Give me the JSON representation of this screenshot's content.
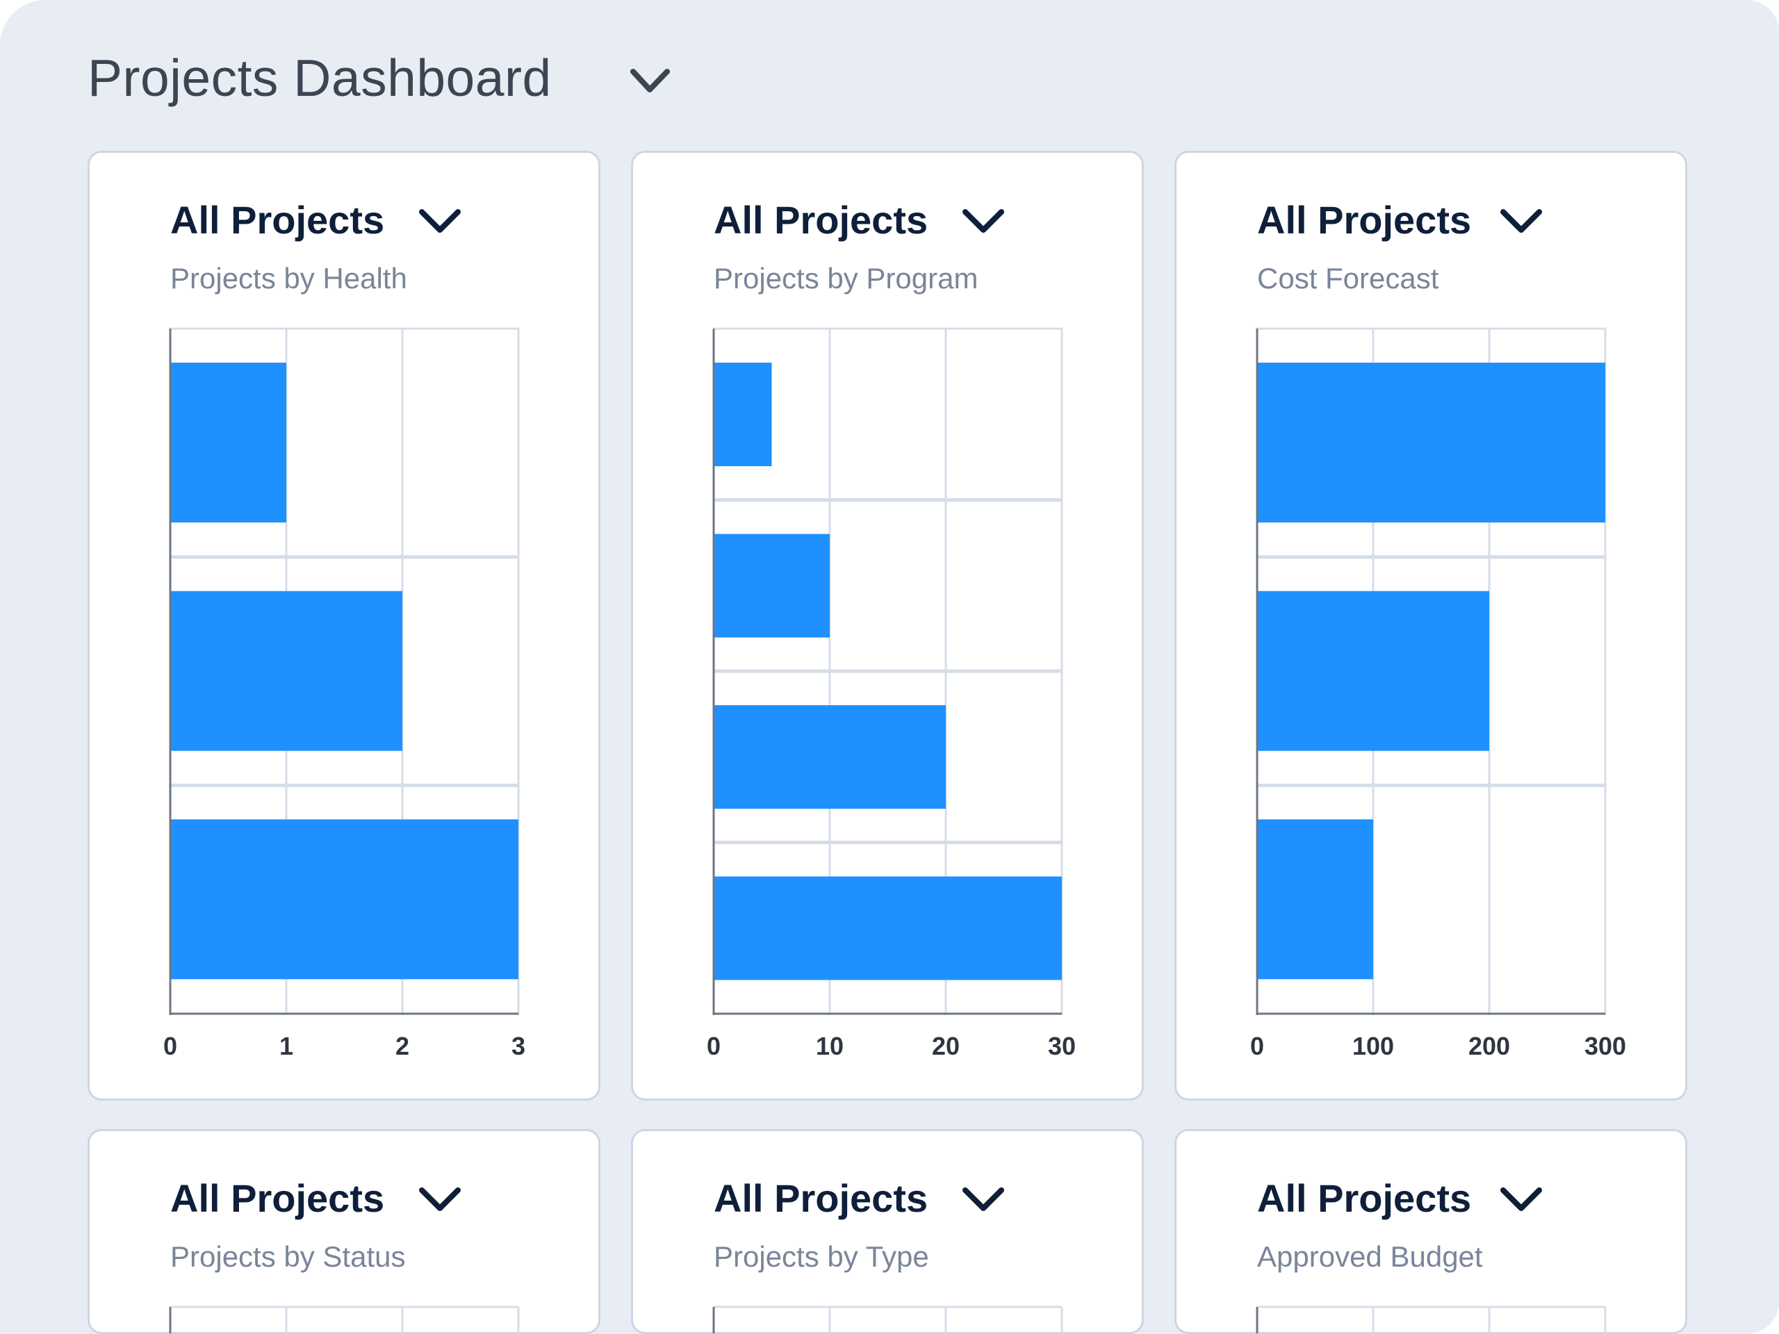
{
  "header": {
    "title": "Projects Dashboard",
    "dropdown_icon": "chevron-down-icon"
  },
  "colors": {
    "bar": "#1e90ff",
    "grid": "#d5dde8",
    "axis": "#6b7686",
    "background": "#e8edf4"
  },
  "cards": [
    {
      "selector": "All Projects",
      "subtitle": "Projects by Health"
    },
    {
      "selector": "All Projects",
      "subtitle": "Projects by Program"
    },
    {
      "selector": "All Projects",
      "subtitle": "Cost Forecast"
    },
    {
      "selector": "All Projects",
      "subtitle": "Projects by Status"
    },
    {
      "selector": "All Projects",
      "subtitle": "Projects by Type"
    },
    {
      "selector": "All Projects",
      "subtitle": "Approved Budget"
    }
  ],
  "chart_data": [
    {
      "type": "bar",
      "orientation": "horizontal",
      "title": "Projects by Health",
      "values": [
        1,
        2,
        3
      ],
      "xlim": [
        0,
        3
      ],
      "xticks": [
        "0",
        "1",
        "2",
        "3"
      ],
      "grid": true
    },
    {
      "type": "bar",
      "orientation": "horizontal",
      "title": "Projects by Program",
      "values": [
        5,
        10,
        20,
        30
      ],
      "xlim": [
        0,
        30
      ],
      "xticks": [
        "0",
        "10",
        "20",
        "30"
      ],
      "grid": true
    },
    {
      "type": "bar",
      "orientation": "horizontal",
      "title": "Cost Forecast",
      "values": [
        300,
        200,
        100
      ],
      "xlim": [
        0,
        300
      ],
      "xticks": [
        "0",
        "100",
        "200",
        "300"
      ],
      "grid": true
    },
    {
      "type": "bar",
      "orientation": "horizontal",
      "title": "Projects by Status",
      "grid": true
    },
    {
      "type": "bar",
      "orientation": "horizontal",
      "title": "Projects by Type",
      "grid": true
    },
    {
      "type": "bar",
      "orientation": "horizontal",
      "title": "Approved Budget",
      "grid": true
    }
  ]
}
